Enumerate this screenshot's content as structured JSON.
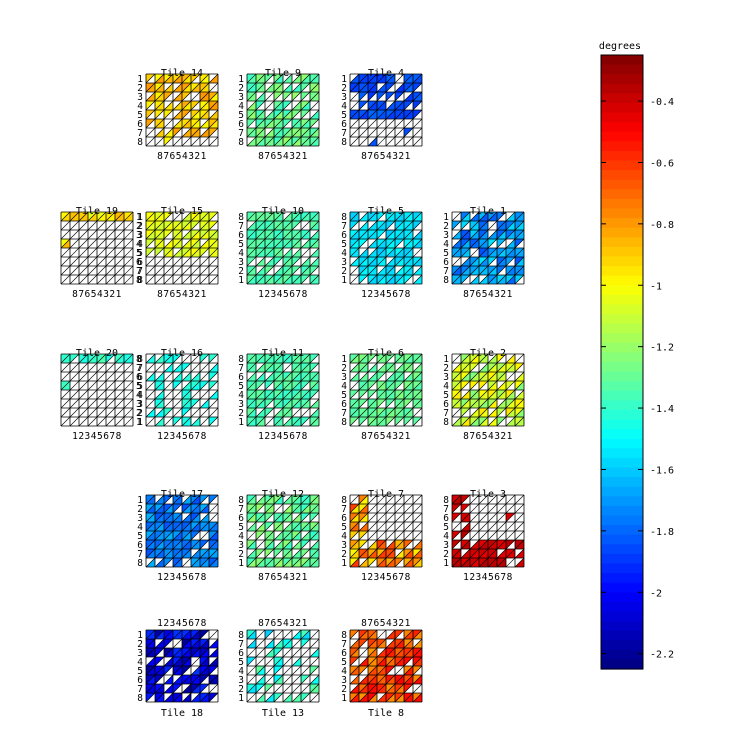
{
  "chart_data": {
    "type": "heatmap",
    "title": "",
    "colorbar": {
      "label": "degrees",
      "range": [
        -2.25,
        -0.25
      ],
      "ticks": [
        -0.4,
        -0.6,
        -0.8,
        -1,
        -1.2,
        -1.4,
        -1.6,
        -1.8,
        -2,
        -2.2
      ],
      "tick_labels": [
        "-0.4",
        "-0.6",
        "-0.8",
        "-1",
        "-1.2",
        "-1.4",
        "-1.6",
        "-1.8",
        "-2",
        "-2.2"
      ],
      "colormap": "jet"
    },
    "grid_size": [
      8,
      8
    ],
    "tiles": [
      {
        "name": "Tile 14",
        "row": 0,
        "col": 1,
        "left": "12345678",
        "bottom": "87654321",
        "top": "",
        "base": -0.9,
        "spread": 0.1,
        "fill": "mixed-top"
      },
      {
        "name": "Tile 9",
        "row": 0,
        "col": 2,
        "left": "12345678",
        "bottom": "87654321",
        "top": "",
        "base": -1.3,
        "spread": 0.1,
        "fill": "dense"
      },
      {
        "name": "Tile 4",
        "row": 0,
        "col": 3,
        "left": "12345678",
        "bottom": "87654321",
        "top": "",
        "base": -1.85,
        "spread": 0.05,
        "fill": "top"
      },
      {
        "name": "Tile 19",
        "row": 1,
        "col": 0,
        "left": "",
        "right": "12345678",
        "bottom": "87654321",
        "top": "",
        "base": -0.95,
        "spread": 0.1,
        "fill": "toprow"
      },
      {
        "name": "Tile 15",
        "row": 1,
        "col": 1,
        "left": "12345678",
        "bottom": "87654321",
        "top": "",
        "base": -1.05,
        "spread": 0.05,
        "fill": "top"
      },
      {
        "name": "Tile 10",
        "row": 1,
        "col": 2,
        "left": "87654321",
        "bottom": "12345678",
        "top": "",
        "base": -1.35,
        "spread": 0.05,
        "fill": "dense"
      },
      {
        "name": "Tile 5",
        "row": 1,
        "col": 3,
        "left": "87654321",
        "bottom": "12345678",
        "top": "",
        "base": -1.55,
        "spread": 0.05,
        "fill": "dense"
      },
      {
        "name": "Tile 1",
        "row": 1,
        "col": 4,
        "left": "12345678",
        "bottom": "87654321",
        "top": "",
        "base": -1.7,
        "spread": 0.15,
        "fill": "dense"
      },
      {
        "name": "Tile 20",
        "row": 2,
        "col": 0,
        "left": "",
        "right": "87654321",
        "bottom": "12345678",
        "top": "",
        "base": -1.4,
        "spread": 0.05,
        "fill": "toprow"
      },
      {
        "name": "Tile 16",
        "row": 2,
        "col": 1,
        "left": "87654321",
        "bottom": "12345678",
        "top": "",
        "base": -1.45,
        "spread": 0.05,
        "fill": "sparse"
      },
      {
        "name": "Tile 11",
        "row": 2,
        "col": 2,
        "left": "87654321",
        "bottom": "12345678",
        "top": "",
        "base": -1.35,
        "spread": 0.05,
        "fill": "dense"
      },
      {
        "name": "Tile 6",
        "row": 2,
        "col": 3,
        "left": "12345678",
        "bottom": "87654321",
        "top": "",
        "base": -1.3,
        "spread": 0.05,
        "fill": "dense"
      },
      {
        "name": "Tile 2",
        "row": 2,
        "col": 4,
        "left": "12345678",
        "bottom": "87654321",
        "top": "",
        "base": -1.1,
        "spread": 0.15,
        "fill": "dense"
      },
      {
        "name": "Tile 17",
        "row": 3,
        "col": 1,
        "left": "12345678",
        "bottom": "12345678",
        "top": "",
        "base": -1.75,
        "spread": 0.1,
        "fill": "dense"
      },
      {
        "name": "Tile 12",
        "row": 3,
        "col": 2,
        "left": "87654321",
        "bottom": "87654321",
        "top": "",
        "base": -1.3,
        "spread": 0.1,
        "fill": "dense"
      },
      {
        "name": "Tile 7",
        "row": 3,
        "col": 3,
        "left": "87654321",
        "bottom": "12345678",
        "top": "",
        "base": -0.8,
        "spread": 0.2,
        "fill": "bottom"
      },
      {
        "name": "Tile 3",
        "row": 3,
        "col": 4,
        "left": "87654321",
        "bottom": "12345678",
        "top": "",
        "base": -0.4,
        "spread": 0.05,
        "fill": "bottom"
      },
      {
        "name": "Tile 18",
        "row": 4,
        "col": 1,
        "left": "12345678",
        "bottom": "",
        "top": "12345678",
        "base": -2.05,
        "spread": 0.15,
        "fill": "dense"
      },
      {
        "name": "Tile 13",
        "row": 4,
        "col": 2,
        "left": "87654321",
        "bottom": "",
        "top": "87654321",
        "base": -1.45,
        "spread": 0.15,
        "fill": "sparse"
      },
      {
        "name": "Tile 8",
        "row": 4,
        "col": 3,
        "left": "87654321",
        "bottom": "",
        "top": "87654321",
        "base": -0.65,
        "spread": 0.15,
        "fill": "dense"
      }
    ]
  }
}
